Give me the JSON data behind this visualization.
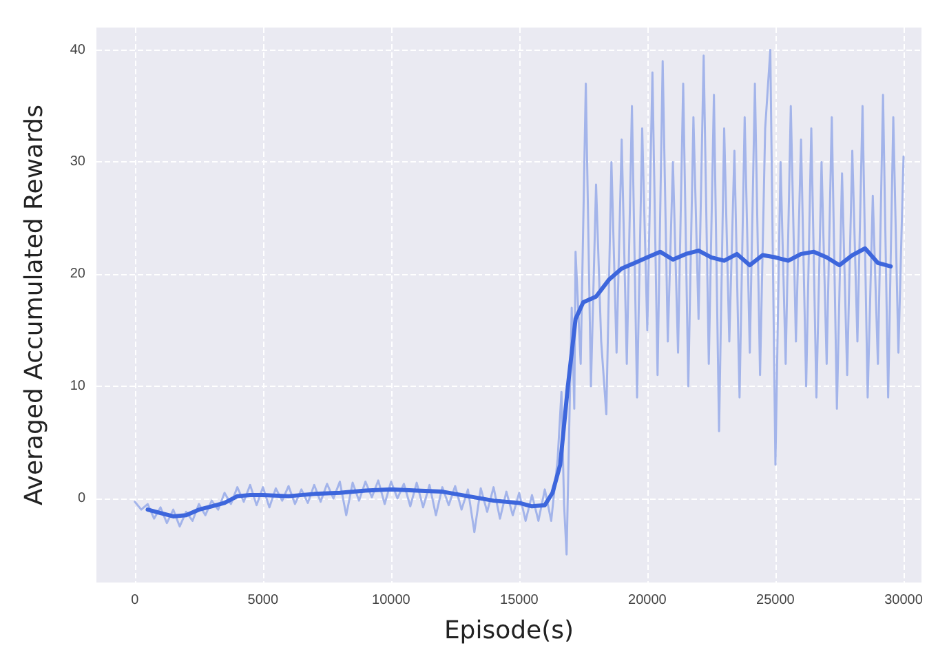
{
  "chart_data": {
    "type": "line",
    "xlabel": "Episode(s)",
    "ylabel": "Averaged Accumulated Rewards",
    "xlim": [
      -1500,
      30700
    ],
    "ylim": [
      -7.5,
      42
    ],
    "xticks": [
      0,
      5000,
      10000,
      15000,
      20000,
      25000,
      30000
    ],
    "yticks": [
      0,
      10,
      20,
      30,
      40
    ],
    "grid": true,
    "marker": "none",
    "line_style": "solid",
    "series": [
      {
        "color": "#a3b4ea",
        "x": [
          0,
          250,
          500,
          750,
          1000,
          1250,
          1500,
          1750,
          2000,
          2250,
          2500,
          2750,
          3000,
          3250,
          3500,
          3750,
          4000,
          4250,
          4500,
          4750,
          5000,
          5250,
          5500,
          5750,
          6000,
          6250,
          6500,
          6750,
          7000,
          7250,
          7500,
          7750,
          8000,
          8250,
          8500,
          8750,
          9000,
          9250,
          9500,
          9750,
          10000,
          10250,
          10500,
          10750,
          11000,
          11250,
          11500,
          11750,
          12000,
          12250,
          12500,
          12750,
          13000,
          13250,
          13500,
          13750,
          14000,
          14250,
          14500,
          14750,
          15000,
          15250,
          15500,
          15750,
          16000,
          16250,
          16500,
          16650,
          16750,
          16850,
          16950,
          17050,
          17150,
          17200,
          17400,
          17600,
          17800,
          18000,
          18200,
          18400,
          18600,
          18800,
          19000,
          19200,
          19400,
          19600,
          19800,
          20000,
          20200,
          20400,
          20600,
          20800,
          21000,
          21200,
          21400,
          21600,
          21800,
          22000,
          22200,
          22400,
          22600,
          22800,
          23000,
          23200,
          23400,
          23600,
          23800,
          24000,
          24200,
          24400,
          24600,
          24800,
          25000,
          25200,
          25400,
          25600,
          25800,
          26000,
          26200,
          26400,
          26600,
          26800,
          27000,
          27200,
          27400,
          27600,
          27800,
          28000,
          28200,
          28400,
          28600,
          28800,
          29000,
          29200,
          29400,
          29600,
          29800,
          30000
        ],
        "values": [
          -0.3,
          -1.0,
          -0.5,
          -1.8,
          -0.8,
          -2.2,
          -1.0,
          -2.5,
          -1.2,
          -2.0,
          -0.5,
          -1.5,
          -0.2,
          -1.0,
          0.5,
          -0.5,
          1.0,
          -0.3,
          1.2,
          -0.6,
          1.0,
          -0.8,
          0.9,
          -0.2,
          1.1,
          -0.5,
          0.8,
          -0.4,
          1.2,
          -0.3,
          1.3,
          0.0,
          1.5,
          -1.5,
          1.4,
          -0.2,
          1.5,
          0.1,
          1.6,
          -0.5,
          1.5,
          0.0,
          1.3,
          -0.7,
          1.4,
          -0.8,
          1.2,
          -1.5,
          1.0,
          -0.6,
          1.1,
          -1.0,
          0.8,
          -3.0,
          0.9,
          -1.2,
          1.0,
          -1.8,
          0.6,
          -1.5,
          0.5,
          -2.0,
          0.3,
          -2.0,
          0.8,
          -2.0,
          3.5,
          9.5,
          -0.5,
          -5.0,
          6.0,
          17.0,
          8.0,
          22,
          12,
          37,
          10,
          28,
          14,
          7.5,
          30,
          13,
          32,
          12,
          35,
          9,
          33,
          15,
          38,
          11,
          39,
          14,
          30,
          13,
          37,
          10,
          34,
          16,
          39.5,
          12,
          36,
          6,
          33,
          14,
          31,
          9,
          34,
          13,
          37,
          11,
          33,
          40,
          3,
          30,
          12,
          35,
          14,
          32,
          10,
          33,
          9,
          30,
          12,
          34,
          8,
          29,
          11,
          31,
          14,
          35,
          9,
          27,
          12,
          36,
          9,
          34,
          13,
          30.5
        ]
      },
      {
        "color": "#3d66dc",
        "x": [
          500,
          1000,
          1500,
          2000,
          2500,
          3000,
          3500,
          4000,
          4500,
          5000,
          6000,
          7000,
          8000,
          9000,
          10000,
          11000,
          12000,
          13000,
          14000,
          15000,
          15500,
          16000,
          16300,
          16600,
          16900,
          17200,
          17500,
          18000,
          18500,
          19000,
          19500,
          20000,
          20500,
          21000,
          21500,
          22000,
          22500,
          23000,
          23500,
          24000,
          24500,
          25000,
          25500,
          26000,
          26500,
          27000,
          27500,
          28000,
          28500,
          29000,
          29500
        ],
        "values": [
          -1.0,
          -1.3,
          -1.6,
          -1.5,
          -1.0,
          -0.7,
          -0.4,
          0.2,
          0.3,
          0.3,
          0.2,
          0.4,
          0.5,
          0.7,
          0.8,
          0.7,
          0.6,
          0.2,
          -0.2,
          -0.4,
          -0.7,
          -0.6,
          0.5,
          3,
          10,
          16,
          17.5,
          18,
          19.5,
          20.5,
          21,
          21.5,
          22,
          21.3,
          21.8,
          22.1,
          21.5,
          21.2,
          21.8,
          20.8,
          21.7,
          21.5,
          21.2,
          21.8,
          22,
          21.5,
          20.8,
          21.7,
          22.3,
          21,
          20.7
        ]
      }
    ]
  }
}
